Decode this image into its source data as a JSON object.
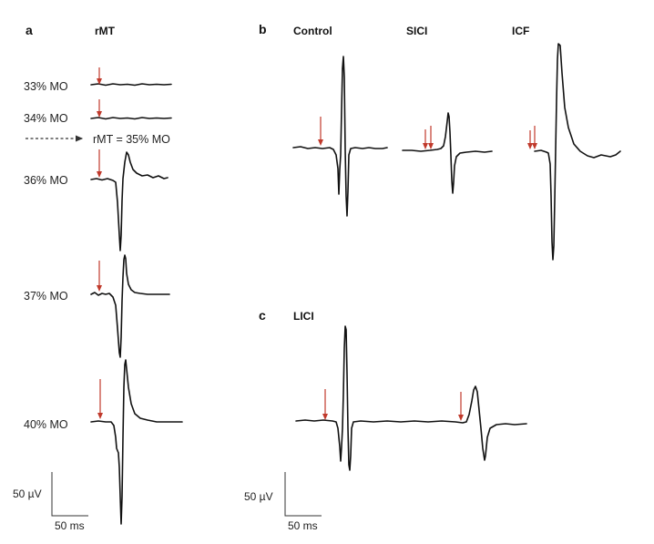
{
  "panel_a": {
    "letter": "a",
    "header": "rMT",
    "intensities": [
      "33% MO",
      "34% MO",
      "36% MO",
      "37% MO",
      "40% MO"
    ],
    "threshold": "rMT = 35% MO"
  },
  "panel_b": {
    "letter": "b",
    "headers": [
      "Control",
      "SICI",
      "ICF"
    ]
  },
  "panel_c": {
    "letter": "c",
    "header": "LICI"
  },
  "scale_bars": {
    "voltage": "50 µV",
    "time": "50 ms"
  },
  "colors": {
    "trace": "#111111",
    "stimulus_arrow": "#c0392b"
  }
}
